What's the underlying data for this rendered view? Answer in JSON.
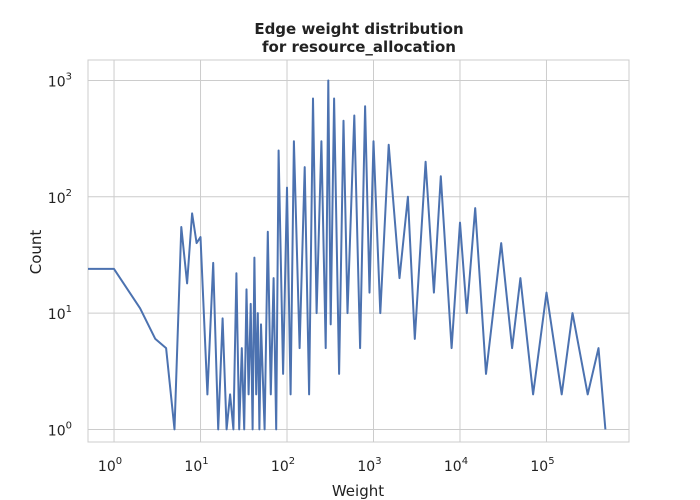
{
  "chart_data": {
    "type": "line",
    "title": [
      "Edge weight distribution",
      "for resource_allocation"
    ],
    "xlabel": "Weight",
    "ylabel": "Count",
    "xscale": "log",
    "yscale": "log",
    "xlim": [
      0.5,
      900000
    ],
    "ylim": [
      0.78,
      1500
    ],
    "grid": true,
    "line_color": "#4c72b0",
    "x_ticks": [
      {
        "base": "10",
        "exp": "0"
      },
      {
        "base": "10",
        "exp": "1"
      },
      {
        "base": "10",
        "exp": "2"
      },
      {
        "base": "10",
        "exp": "3"
      },
      {
        "base": "10",
        "exp": "4"
      },
      {
        "base": "10",
        "exp": "5"
      }
    ],
    "y_ticks": [
      {
        "base": "10",
        "exp": "0"
      },
      {
        "base": "10",
        "exp": "1"
      },
      {
        "base": "10",
        "exp": "2"
      },
      {
        "base": "10",
        "exp": "3"
      }
    ],
    "series": [
      {
        "x": [
          0.5,
          1,
          2,
          3,
          4,
          5,
          6,
          7,
          8,
          9,
          10,
          12,
          14,
          16,
          18,
          20,
          22,
          24,
          26,
          28,
          30,
          32,
          34,
          36,
          38,
          40,
          42,
          44,
          46,
          48,
          50,
          55,
          60,
          65,
          70,
          75,
          80,
          90,
          100,
          110,
          120,
          140,
          160,
          180,
          200,
          220,
          250,
          280,
          300,
          320,
          350,
          400,
          450,
          500,
          600,
          700,
          800,
          900,
          1000,
          1200,
          1500,
          2000,
          2500,
          3000,
          4000,
          5000,
          6000,
          8000,
          10000,
          12000,
          15000,
          20000,
          30000,
          40000,
          50000,
          70000,
          100000,
          150000,
          200000,
          300000,
          400000,
          480000
        ],
        "y": [
          24,
          24,
          11,
          6,
          5,
          1,
          55,
          18,
          72,
          40,
          45,
          2,
          27,
          1,
          9,
          1,
          2,
          1,
          22,
          1,
          5,
          1,
          16,
          2,
          12,
          1,
          30,
          2,
          10,
          1,
          8,
          1,
          50,
          2,
          20,
          1,
          250,
          3,
          120,
          2,
          300,
          5,
          180,
          2,
          700,
          10,
          300,
          5,
          1000,
          8,
          700,
          3,
          450,
          10,
          500,
          5,
          600,
          15,
          300,
          10,
          280,
          20,
          100,
          6,
          200,
          15,
          150,
          5,
          60,
          10,
          80,
          3,
          40,
          5,
          20,
          2,
          15,
          2,
          10,
          2,
          5,
          1
        ]
      }
    ]
  }
}
